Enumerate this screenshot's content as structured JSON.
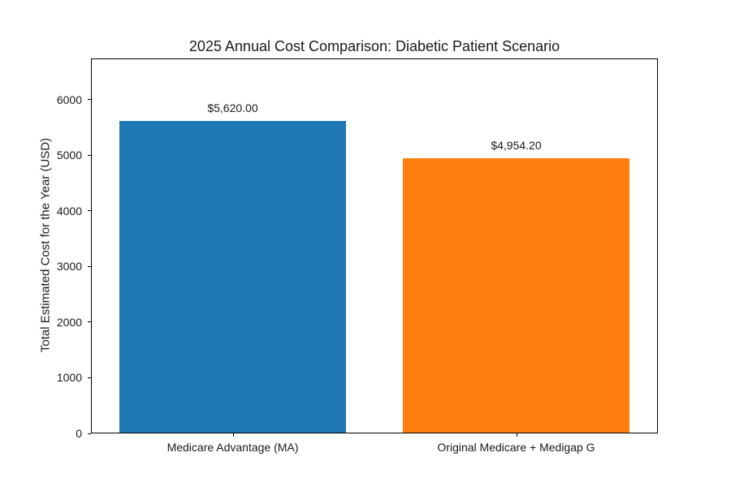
{
  "chart_data": {
    "type": "bar",
    "title": "2025 Annual Cost Comparison: Diabetic Patient Scenario",
    "xlabel": "",
    "ylabel": "Total Estimated Cost for the Year (USD)",
    "categories": [
      "Medicare Advantage (MA)",
      "Original Medicare + Medigap G"
    ],
    "values": [
      5620.0,
      4954.2
    ],
    "value_labels": [
      "$5,620.00",
      "$4,954.20"
    ],
    "bar_colors": [
      "#1f77b4",
      "#ff7f0e"
    ],
    "yticks": [
      0,
      1000,
      2000,
      3000,
      4000,
      5000,
      6000
    ],
    "ylim": [
      0,
      6744
    ],
    "grid": false,
    "legend_position": "none",
    "background_color": "#ffffff",
    "axis_color": "#000000",
    "text_color": "#1a1a1a"
  }
}
